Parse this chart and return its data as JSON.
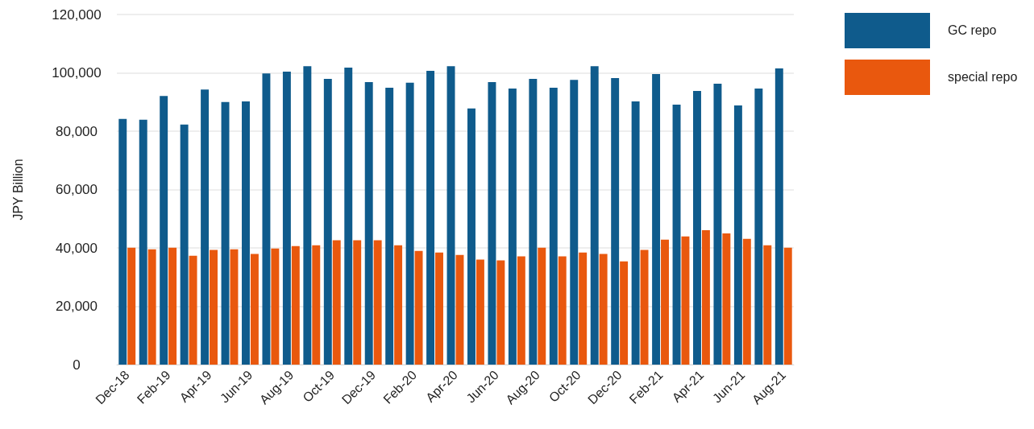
{
  "chart_data": {
    "type": "bar",
    "ylabel": "JPY Billion",
    "categories": [
      "Dec-18",
      null,
      "Feb-19",
      null,
      "Apr-19",
      null,
      "Jun-19",
      null,
      "Aug-19",
      null,
      "Oct-19",
      null,
      "Dec-19",
      null,
      "Feb-20",
      null,
      "Apr-20",
      null,
      "Jun-20",
      null,
      "Aug-20",
      null,
      "Oct-20",
      null,
      "Dec-20",
      null,
      "Feb-21",
      null,
      "Apr-21",
      null,
      "Jun-21",
      null,
      "Aug-21"
    ],
    "series": [
      {
        "name": "GC repo",
        "color": "#0f5b8c",
        "values": [
          84200,
          83900,
          92100,
          82300,
          94300,
          90000,
          90200,
          99800,
          100400,
          102300,
          97900,
          101800,
          96800,
          94900,
          96600,
          100700,
          102300,
          87800,
          96800,
          94600,
          97900,
          94900,
          97600,
          102300,
          98200,
          90200,
          99600,
          89100,
          93800,
          96300,
          88800,
          94600,
          101500
        ]
      },
      {
        "name": "special repo",
        "color": "#e9580e",
        "values": [
          40100,
          39500,
          40100,
          37300,
          39300,
          39500,
          37900,
          39800,
          40600,
          40900,
          42600,
          42600,
          42600,
          40900,
          39000,
          38400,
          37600,
          36000,
          35700,
          37100,
          40100,
          37100,
          38400,
          37900,
          35400,
          39300,
          42800,
          43900,
          46100,
          45000,
          43100,
          40900,
          40100
        ]
      }
    ],
    "ylim": [
      0,
      120000
    ],
    "yticks": [
      0,
      {
        "value": 20000,
        "label": "20,000"
      },
      {
        "value": 40000,
        "label": "40,000"
      },
      {
        "value": 60000,
        "label": "60,000"
      },
      {
        "value": 80000,
        "label": "80,000"
      },
      {
        "value": 100000,
        "label": "100,000"
      },
      {
        "value": 120000,
        "label": "120,000"
      }
    ],
    "grid": "y",
    "legend": "top right"
  }
}
